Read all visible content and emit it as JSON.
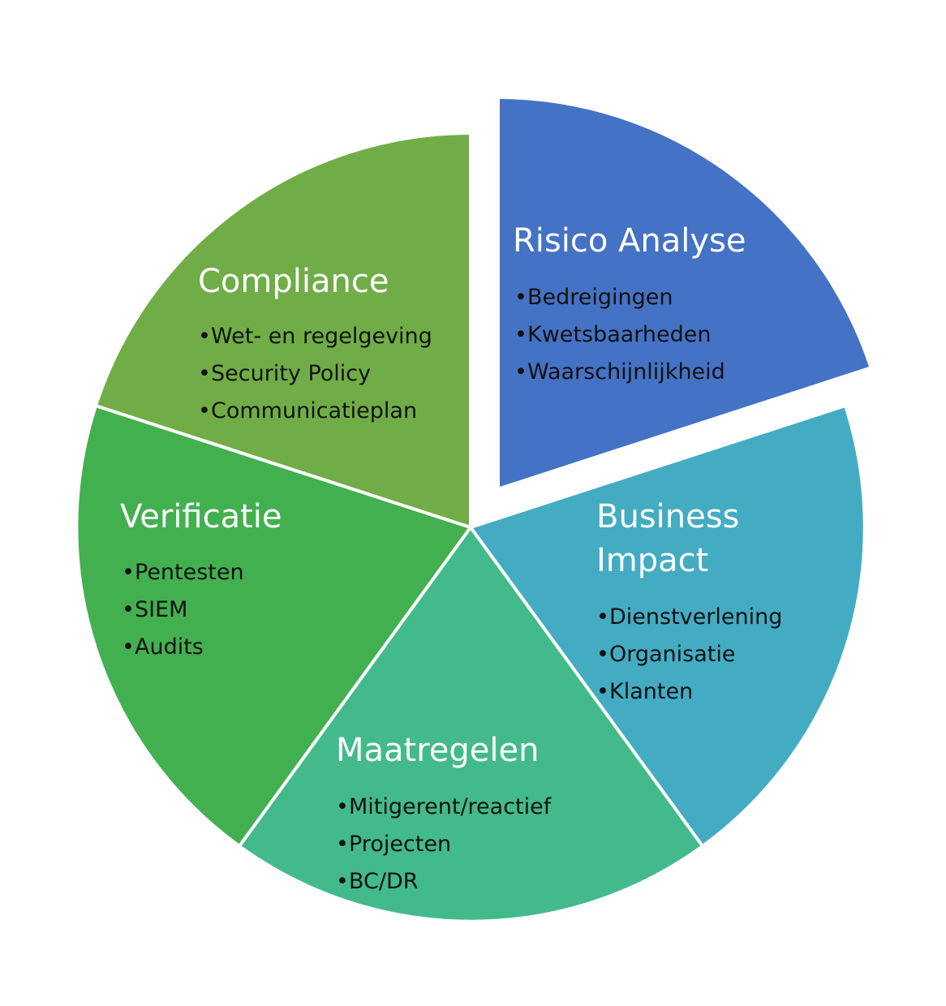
{
  "segments": {
    "risico": {
      "color": "#4472C4",
      "title": "Risico Analyse",
      "items": [
        "Bedreigingen",
        "Kwetsbaarheden",
        "Waarschijnlijkheid"
      ]
    },
    "business": {
      "color": "#43ACC3",
      "title": "Business\nImpact",
      "items": [
        "Dienstverlening",
        "Organisatie",
        "Klanten"
      ]
    },
    "maatregelen": {
      "color": "#43BA8B",
      "title": "Maatregelen",
      "items": [
        "Mitigerent/reactief",
        "Projecten",
        "BC/DR"
      ]
    },
    "verificatie": {
      "color": "#43B050",
      "title": "Verificatie",
      "items": [
        "Pentesten",
        "SIEM",
        "Audits"
      ]
    },
    "compliance": {
      "color": "#70AD47",
      "title": "Compliance",
      "items": [
        "Wet- en regelgeving",
        "Security Policy",
        "Communicatieplan"
      ]
    }
  },
  "bullet_symbol": "•"
}
